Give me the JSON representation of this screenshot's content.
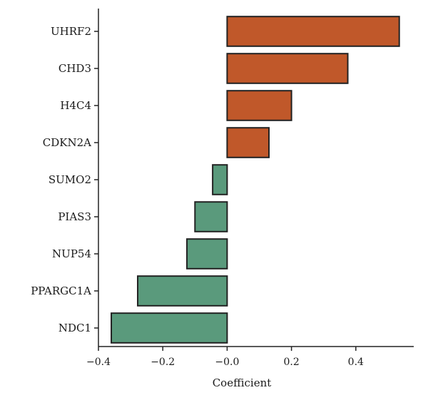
{
  "chart_data": {
    "type": "bar",
    "orientation": "horizontal",
    "categories": [
      "UHRF2",
      "CHD3",
      "H4C4",
      "CDKN2A",
      "SUMO2",
      "PIAS3",
      "NUP54",
      "PPARGC1A",
      "NDC1"
    ],
    "values": [
      0.535,
      0.375,
      0.2,
      0.13,
      -0.045,
      -0.1,
      -0.125,
      -0.278,
      -0.36
    ],
    "xlabel": "Coefficient",
    "ylabel": "",
    "title": "",
    "xlim": [
      -0.4,
      0.58
    ],
    "xticks": [
      -0.4,
      -0.2,
      0.0,
      0.2,
      0.4
    ],
    "xtick_labels": [
      "−0.4",
      "−0.2",
      "−0.0",
      "0.2",
      "0.4"
    ],
    "grid": false,
    "legend": "none",
    "colors": {
      "positive": "#c0582a",
      "negative": "#5a9a7c",
      "outline": "#222222"
    }
  }
}
